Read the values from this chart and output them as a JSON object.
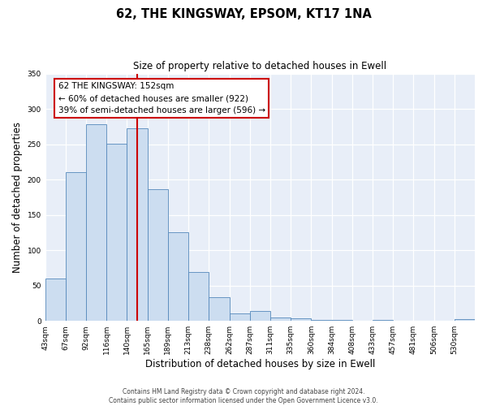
{
  "title": "62, THE KINGSWAY, EPSOM, KT17 1NA",
  "subtitle": "Size of property relative to detached houses in Ewell",
  "xlabel": "Distribution of detached houses by size in Ewell",
  "ylabel": "Number of detached properties",
  "bin_labels": [
    "43sqm",
    "67sqm",
    "92sqm",
    "116sqm",
    "140sqm",
    "165sqm",
    "189sqm",
    "213sqm",
    "238sqm",
    "262sqm",
    "287sqm",
    "311sqm",
    "335sqm",
    "360sqm",
    "384sqm",
    "408sqm",
    "433sqm",
    "457sqm",
    "481sqm",
    "506sqm",
    "530sqm"
  ],
  "bar_heights": [
    60,
    210,
    278,
    251,
    272,
    186,
    125,
    69,
    34,
    11,
    14,
    5,
    4,
    1,
    1,
    0,
    1,
    0,
    0,
    0,
    2
  ],
  "bar_color": "#ccddf0",
  "bar_edge_color": "#5588bb",
  "vline_color": "#cc0000",
  "annotation_text": "62 THE KINGSWAY: 152sqm\n← 60% of detached houses are smaller (922)\n39% of semi-detached houses are larger (596) →",
  "annotation_box_color": "#ffffff",
  "annotation_box_edge_color": "#cc0000",
  "ylim": [
    0,
    350
  ],
  "yticks": [
    0,
    50,
    100,
    150,
    200,
    250,
    300,
    350
  ],
  "footer_line1": "Contains HM Land Registry data © Crown copyright and database right 2024.",
  "footer_line2": "Contains public sector information licensed under the Open Government Licence v3.0.",
  "fig_bg_color": "#ffffff",
  "plot_bg_color": "#e8eef8"
}
